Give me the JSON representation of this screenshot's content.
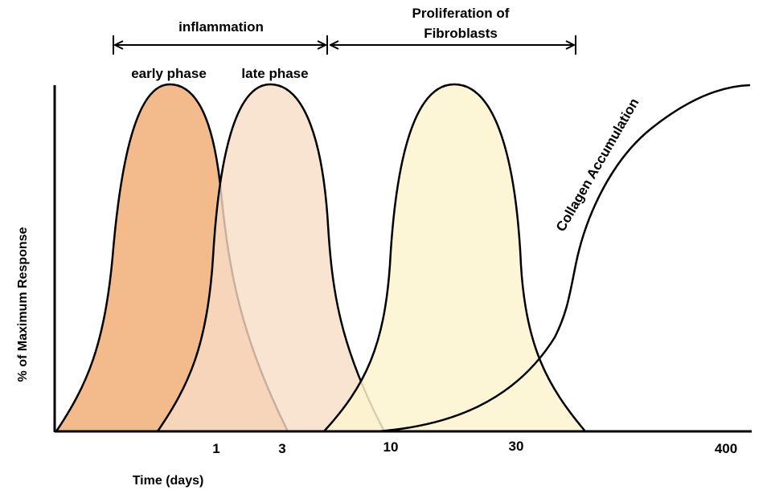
{
  "header": {
    "inflammation": "inflammation",
    "proliferation_line1": "Proliferation of",
    "proliferation_line2": "Fibroblasts"
  },
  "phases": {
    "early": "early phase",
    "late": "late phase"
  },
  "axes": {
    "y_label": "% of Maximum Response",
    "x_label": "Time (days)",
    "x_ticks": [
      "1",
      "3",
      "10",
      "30",
      "400"
    ]
  },
  "curves": {
    "collagen_label": "Collagen Accumulation"
  },
  "colors": {
    "early_phase_fill": "#f2b27e",
    "late_phase_fill": "#f8dcc5",
    "fibroblast_fill": "#fdf4cf",
    "stroke": "#000000"
  }
}
